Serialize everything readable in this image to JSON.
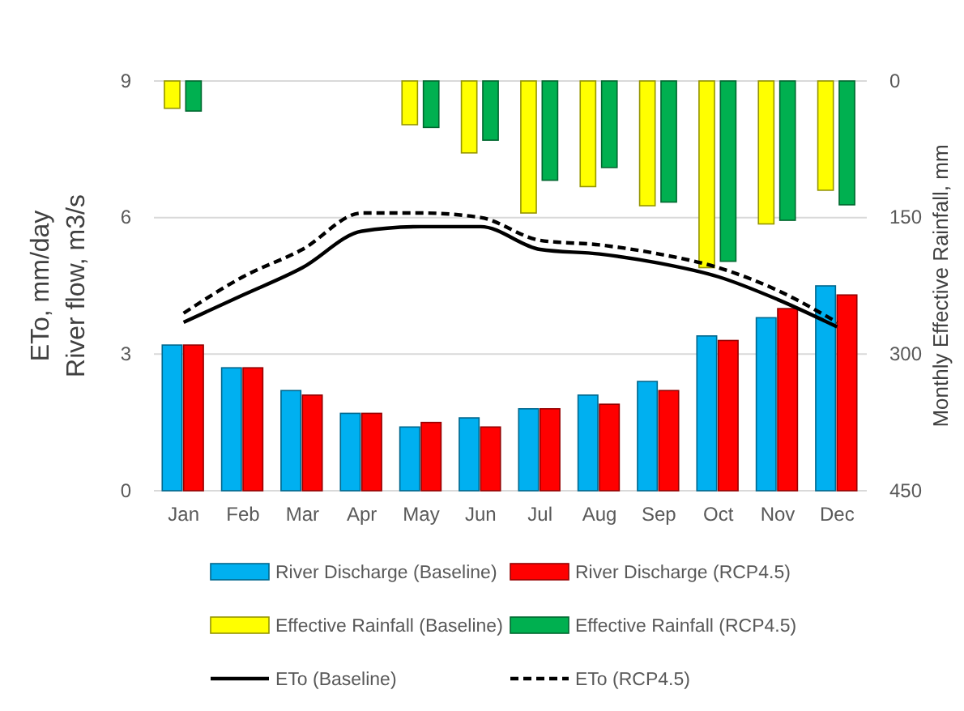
{
  "chart_data": {
    "type": "bar",
    "ylabel": "ETo, mm/day\nRiver flow, m3/s",
    "y2label": "Monthly Effective Rainfall, mm",
    "categories": [
      "Jan",
      "Feb",
      "Mar",
      "Apr",
      "May",
      "Jun",
      "Jul",
      "Aug",
      "Sep",
      "Oct",
      "Nov",
      "Dec"
    ],
    "ylim": [
      0,
      9
    ],
    "yticks": [
      0,
      3,
      6,
      9
    ],
    "y2lim": [
      450,
      0
    ],
    "y2ticks": [
      0,
      150,
      300,
      450
    ],
    "grid": "y",
    "legend": "bottom",
    "series": [
      {
        "name": "River Discharge (Baseline)",
        "color": "#00b0f0",
        "values": [
          3.2,
          2.7,
          2.2,
          1.7,
          1.4,
          1.6,
          1.8,
          2.1,
          2.4,
          3.4,
          3.8,
          4.5
        ]
      },
      {
        "name": "River Discharge (RCP4.5)",
        "color": "#ff0000",
        "values": [
          3.2,
          2.7,
          2.1,
          1.7,
          1.5,
          1.4,
          1.8,
          1.9,
          2.2,
          3.3,
          4.0,
          4.3
        ]
      },
      {
        "name": "Effective Rainfall (Baseline)",
        "axis": "y2",
        "color": "#ffff00",
        "values": [
          30,
          0,
          0,
          0,
          48,
          79,
          145,
          116,
          137,
          205,
          157,
          120
        ]
      },
      {
        "name": "Effective Rainfall (RCP4.5)",
        "axis": "y2",
        "color": "#00b050",
        "values": [
          33,
          0,
          0,
          0,
          51,
          65,
          109,
          95,
          133,
          198,
          153,
          136
        ]
      },
      {
        "name": "ETo (Baseline)",
        "type": "line",
        "color": "#000000",
        "line_style": "solid",
        "values": [
          3.7,
          4.3,
          4.9,
          5.7,
          5.8,
          5.8,
          5.3,
          5.2,
          5.0,
          4.7,
          4.2,
          3.6
        ]
      },
      {
        "name": "ETo (RCP4.5)",
        "type": "line",
        "color": "#000000",
        "line_style": "dashed",
        "values": [
          3.9,
          4.7,
          5.3,
          6.1,
          6.1,
          6.0,
          5.5,
          5.4,
          5.2,
          4.9,
          4.4,
          3.7
        ]
      }
    ]
  }
}
